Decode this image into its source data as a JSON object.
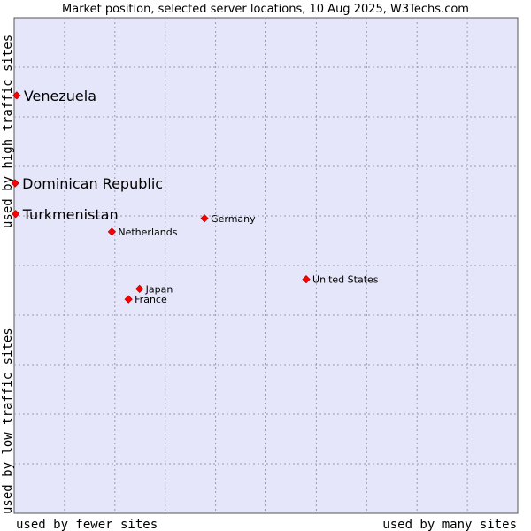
{
  "chart_data": {
    "type": "scatter",
    "title": "Market position, selected server locations, 10 Aug 2025, W3Techs.com",
    "xlabel_low": "used by fewer sites",
    "xlabel_high": "used by many sites",
    "ylabel_low": "used by low traffic sites",
    "ylabel_high": "used by high traffic sites",
    "xlim": [
      0,
      100
    ],
    "ylim": [
      0,
      100
    ],
    "grid": true,
    "gridlines": 10,
    "plot_background": "#e6e6fa",
    "point_color": "#ff0000",
    "points": [
      {
        "name": "Venezuela",
        "x": 0.5,
        "y": 84.3,
        "highlight": true
      },
      {
        "name": "Dominican Republic",
        "x": 0.2,
        "y": 66.6,
        "highlight": true
      },
      {
        "name": "Turkmenistan",
        "x": 0.3,
        "y": 60.4,
        "highlight": true
      },
      {
        "name": "Germany",
        "x": 37.8,
        "y": 59.5,
        "highlight": false
      },
      {
        "name": "Netherlands",
        "x": 19.4,
        "y": 56.8,
        "highlight": false
      },
      {
        "name": "United States",
        "x": 58.0,
        "y": 47.2,
        "highlight": false
      },
      {
        "name": "Japan",
        "x": 24.9,
        "y": 45.3,
        "highlight": false
      },
      {
        "name": "France",
        "x": 22.7,
        "y": 43.2,
        "highlight": false
      }
    ]
  }
}
